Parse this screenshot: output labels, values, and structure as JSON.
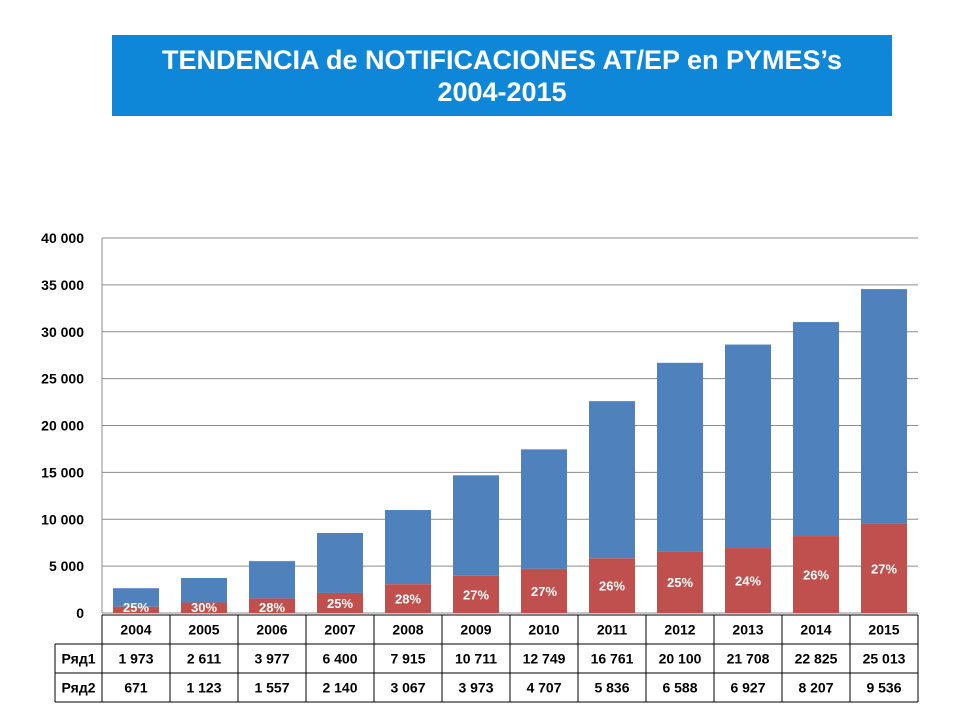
{
  "title": "TENDENCIA de NOTIFICACIONES AT/EP en PYMES’s 2004-2015",
  "chart_data": {
    "type": "bar",
    "stacked": true,
    "title": "TENDENCIA de NOTIFICACIONES AT/EP en PYMES’s 2004-2015",
    "categories": [
      "2004",
      "2005",
      "2006",
      "2007",
      "2008",
      "2009",
      "2010",
      "2011",
      "2012",
      "2013",
      "2014",
      "2015"
    ],
    "series": [
      {
        "name": "Ряд2",
        "color": "#c0504d",
        "values": [
          671,
          1123,
          1557,
          2140,
          3067,
          3973,
          4707,
          5836,
          6588,
          6927,
          8207,
          9536
        ],
        "labels": [
          "671",
          "1 123",
          "1 557",
          "2 140",
          "3 067",
          "3 973",
          "4 707",
          "5 836",
          "6 588",
          "6 927",
          "8 207",
          "9 536"
        ]
      },
      {
        "name": "Ряд1",
        "color": "#4f81bd",
        "values": [
          1973,
          2611,
          3977,
          6400,
          7915,
          10711,
          12749,
          16761,
          20100,
          21708,
          22825,
          25013
        ],
        "labels": [
          "1 973",
          "2 611",
          "3 977",
          "6 400",
          "7 915",
          "10 711",
          "12 749",
          "16 761",
          "20 100",
          "21 708",
          "22 825",
          "25 013"
        ]
      }
    ],
    "data_labels": [
      "25%",
      "30%",
      "28%",
      "25%",
      "28%",
      "27%",
      "27%",
      "26%",
      "25%",
      "24%",
      "26%",
      "27%"
    ],
    "data_label_series": "Ряд2",
    "ylim": [
      0,
      40000
    ],
    "yticks": [
      0,
      5000,
      10000,
      15000,
      20000,
      25000,
      30000,
      35000,
      40000
    ],
    "ytick_labels": [
      "0",
      "5 000",
      "10 000",
      "15 000",
      "20 000",
      "25 000",
      "30 000",
      "35 000",
      "40 000"
    ],
    "xlabel": "",
    "ylabel": "",
    "grid": true,
    "legend": "data-table",
    "data_table": true
  }
}
